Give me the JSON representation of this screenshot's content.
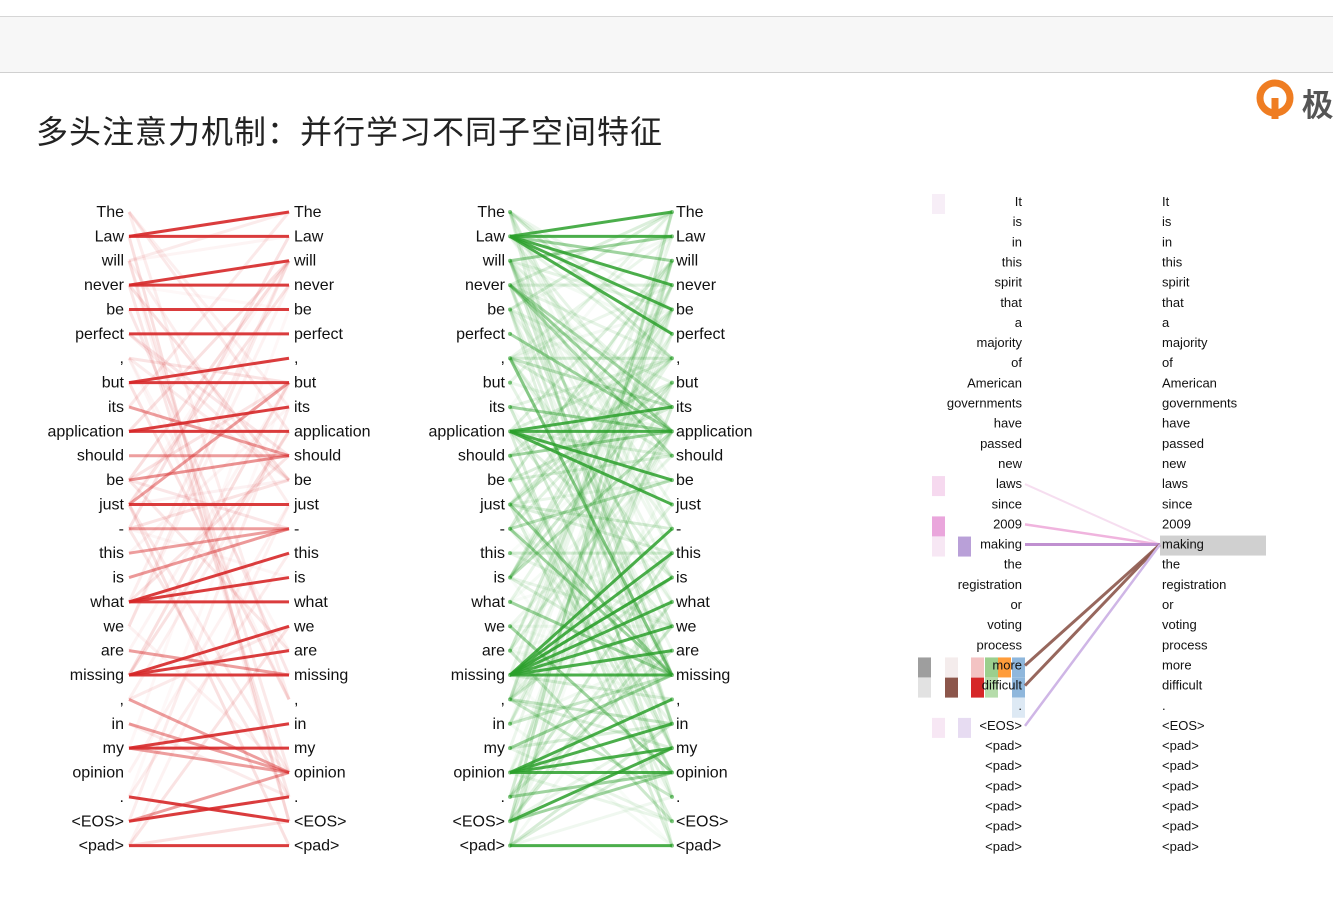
{
  "title": "多头注意力机制：并行学习不同子空间特征",
  "logo": {
    "text": "极",
    "icon": "orange-q-logo-icon"
  },
  "colors": {
    "red": "#d62728",
    "green": "#2ca02c",
    "purple": "#c090d0",
    "brown": "#8c564b",
    "pink": "#e377c2",
    "lavender": "#cfb6e6"
  },
  "left_sentence": [
    "The",
    "Law",
    "will",
    "never",
    "be",
    "perfect",
    ",",
    "but",
    "its",
    "application",
    "should",
    "be",
    "just",
    "-",
    "this",
    "is",
    "what",
    "we",
    "are",
    "missing",
    ",",
    "in",
    "my",
    "opinion",
    ".",
    "<EOS>",
    "<pad>"
  ],
  "right_sentence": [
    "It",
    "is",
    "in",
    "this",
    "spirit",
    "that",
    "a",
    "majority",
    "of",
    "American",
    "governments",
    "have",
    "passed",
    "new",
    "laws",
    "since",
    "2009",
    "making",
    "the",
    "registration",
    "or",
    "voting",
    "process",
    "more",
    "difficult",
    ".",
    "<EOS>",
    "<pad>",
    "<pad>",
    "<pad>",
    "<pad>",
    "<pad>",
    "<pad>"
  ],
  "right_highlight_word": "making",
  "red_strong": [
    [
      1,
      0
    ],
    [
      1,
      1
    ],
    [
      3,
      2
    ],
    [
      3,
      3
    ],
    [
      4,
      4
    ],
    [
      5,
      5
    ],
    [
      7,
      6
    ],
    [
      7,
      7
    ],
    [
      9,
      8
    ],
    [
      9,
      9
    ],
    [
      12,
      12
    ],
    [
      16,
      14
    ],
    [
      16,
      15
    ],
    [
      16,
      16
    ],
    [
      19,
      17
    ],
    [
      19,
      18
    ],
    [
      19,
      19
    ],
    [
      22,
      21
    ],
    [
      22,
      22
    ],
    [
      24,
      25
    ],
    [
      25,
      24
    ],
    [
      26,
      26
    ]
  ],
  "red_medium": [
    [
      8,
      10
    ],
    [
      10,
      10
    ],
    [
      11,
      10
    ],
    [
      13,
      13
    ],
    [
      14,
      13
    ],
    [
      12,
      7
    ],
    [
      15,
      13
    ],
    [
      22,
      23
    ],
    [
      20,
      23
    ],
    [
      25,
      23
    ],
    [
      21,
      23
    ],
    [
      18,
      19
    ]
  ],
  "green_strong": [
    [
      1,
      0
    ],
    [
      1,
      1
    ],
    [
      1,
      4
    ],
    [
      1,
      5
    ],
    [
      9,
      8
    ],
    [
      9,
      9
    ],
    [
      9,
      11
    ],
    [
      19,
      14
    ],
    [
      19,
      15
    ],
    [
      19,
      16
    ],
    [
      19,
      17
    ],
    [
      19,
      18
    ],
    [
      19,
      19
    ],
    [
      23,
      20
    ],
    [
      23,
      21
    ],
    [
      23,
      22
    ],
    [
      23,
      23
    ],
    [
      25,
      22
    ],
    [
      26,
      26
    ],
    [
      1,
      3
    ],
    [
      9,
      12
    ],
    [
      19,
      13
    ]
  ],
  "green_medium": [
    [
      1,
      2
    ],
    [
      2,
      1
    ],
    [
      8,
      9
    ],
    [
      10,
      9
    ],
    [
      13,
      19
    ],
    [
      16,
      19
    ],
    [
      22,
      19
    ],
    [
      24,
      23
    ],
    [
      25,
      23
    ],
    [
      3,
      9
    ],
    [
      5,
      9
    ],
    [
      6,
      19
    ],
    [
      17,
      23
    ],
    [
      12,
      19
    ]
  ],
  "attn_heads": {
    "purple_from": [
      17
    ],
    "brown_from": [
      23,
      24
    ],
    "pink_from": [
      16
    ],
    "lavender_from": [
      26,
      14
    ]
  }
}
